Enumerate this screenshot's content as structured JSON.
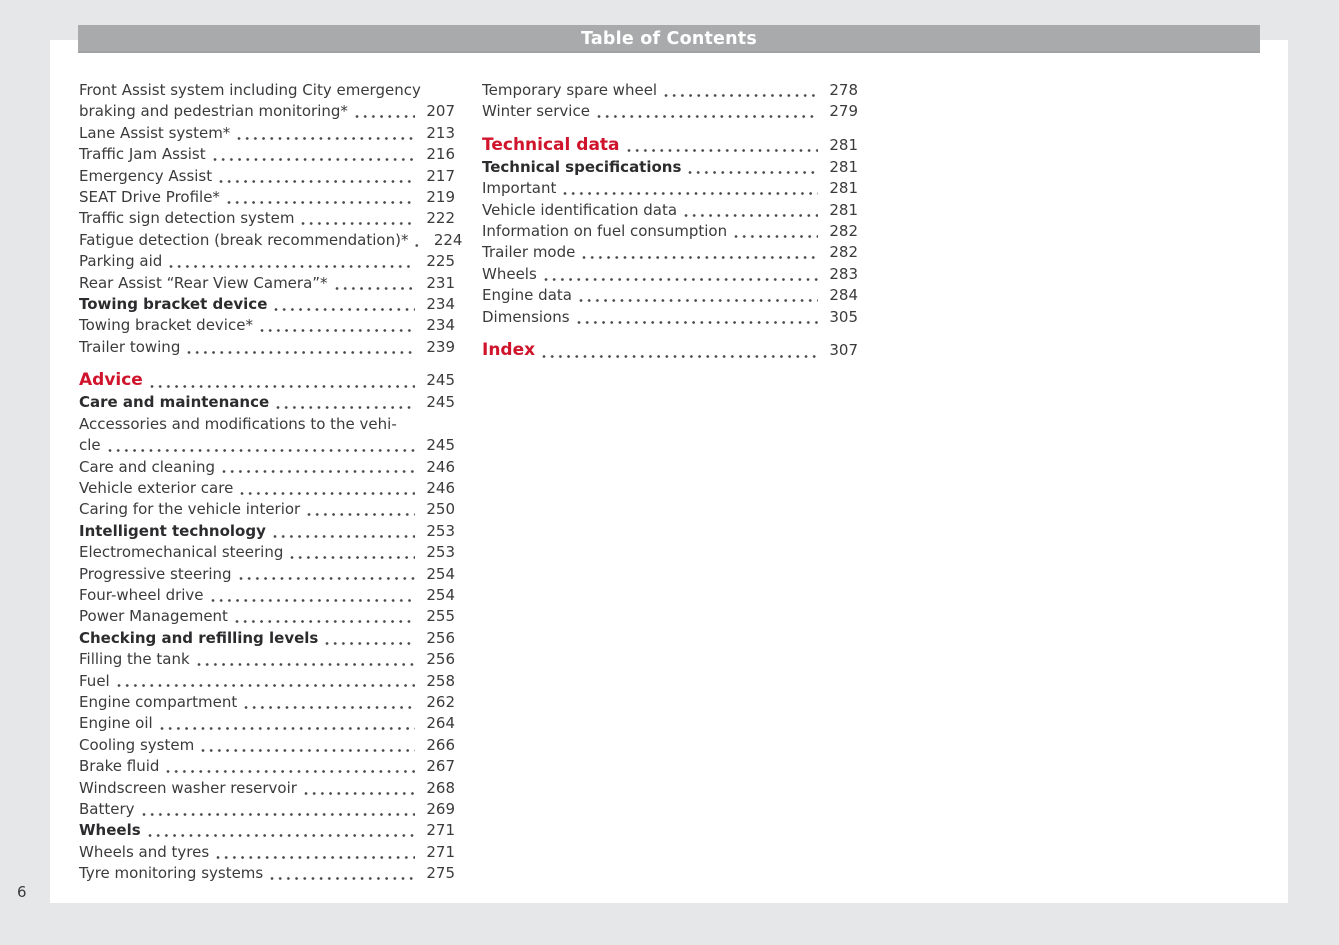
{
  "header": {
    "title": "Table of Contents"
  },
  "page_number": "6",
  "colors": {
    "accent_red": "#cf142b",
    "bar_gray": "#a9aaab",
    "text_gray": "#3b3b3d",
    "canvas_gray": "#e6e7e8",
    "page_white": "#ffffff"
  },
  "toc": {
    "left_column": [
      {
        "pre": "Front Assist system including City emergency",
        "label": "braking and pedestrian monitoring*",
        "page": "207",
        "style": "normal"
      },
      {
        "label": "Lane Assist system*",
        "page": "213",
        "style": "normal"
      },
      {
        "label": "Traffic Jam Assist",
        "page": "216",
        "style": "normal"
      },
      {
        "label": "Emergency Assist",
        "page": "217",
        "style": "normal"
      },
      {
        "label": "SEAT Drive Profile*",
        "page": "219",
        "style": "normal"
      },
      {
        "label": "Traffic sign detection system",
        "page": "222",
        "style": "normal"
      },
      {
        "label": "Fatigue detection (break recommendation)*",
        "page": "224",
        "style": "normal"
      },
      {
        "label": "Parking aid",
        "page": "225",
        "style": "normal"
      },
      {
        "label": "Rear Assist “Rear View Camera”*",
        "page": "231",
        "style": "normal"
      },
      {
        "label": "Towing bracket device",
        "page": "234",
        "style": "bold"
      },
      {
        "label": "Towing bracket device*",
        "page": "234",
        "style": "normal"
      },
      {
        "label": "Trailer towing",
        "page": "239",
        "style": "normal"
      },
      {
        "label": "Advice",
        "page": "245",
        "style": "chapter"
      },
      {
        "label": "Care and maintenance",
        "page": "245",
        "style": "bold"
      },
      {
        "pre": "Accessories and modifications to the vehi-",
        "label": "cle",
        "page": "245",
        "style": "normal"
      },
      {
        "label": "Care and cleaning",
        "page": "246",
        "style": "normal"
      },
      {
        "label": "Vehicle exterior care",
        "page": "246",
        "style": "normal"
      },
      {
        "label": "Caring for the vehicle interior",
        "page": "250",
        "style": "normal"
      },
      {
        "label": "Intelligent technology",
        "page": "253",
        "style": "bold"
      },
      {
        "label": "Electromechanical steering",
        "page": "253",
        "style": "normal"
      },
      {
        "label": "Progressive steering",
        "page": "254",
        "style": "normal"
      },
      {
        "label": "Four-wheel drive",
        "page": "254",
        "style": "normal"
      },
      {
        "label": "Power Management",
        "page": "255",
        "style": "normal"
      },
      {
        "label": "Checking and refilling levels",
        "page": "256",
        "style": "bold"
      },
      {
        "label": "Filling the tank",
        "page": "256",
        "style": "normal"
      },
      {
        "label": "Fuel",
        "page": "258",
        "style": "normal"
      },
      {
        "label": "Engine compartment",
        "page": "262",
        "style": "normal"
      },
      {
        "label": "Engine oil",
        "page": "264",
        "style": "normal"
      },
      {
        "label": "Cooling system",
        "page": "266",
        "style": "normal"
      },
      {
        "label": "Brake fluid",
        "page": "267",
        "style": "normal"
      },
      {
        "label": "Windscreen washer reservoir",
        "page": "268",
        "style": "normal"
      },
      {
        "label": "Battery",
        "page": "269",
        "style": "normal"
      },
      {
        "label": "Wheels",
        "page": "271",
        "style": "bold"
      },
      {
        "label": "Wheels and tyres",
        "page": "271",
        "style": "normal"
      },
      {
        "label": "Tyre monitoring systems",
        "page": "275",
        "style": "normal"
      }
    ],
    "right_column": [
      {
        "label": "Temporary spare wheel",
        "page": "278",
        "style": "normal"
      },
      {
        "label": "Winter service",
        "page": "279",
        "style": "normal"
      },
      {
        "label": "Technical data",
        "page": "281",
        "style": "chapter"
      },
      {
        "label": "Technical specifications",
        "page": "281",
        "style": "bold"
      },
      {
        "label": "Important",
        "page": "281",
        "style": "normal"
      },
      {
        "label": "Vehicle identification data",
        "page": "281",
        "style": "normal"
      },
      {
        "label": "Information on fuel consumption",
        "page": "282",
        "style": "normal"
      },
      {
        "label": "Trailer mode",
        "page": "282",
        "style": "normal"
      },
      {
        "label": "Wheels",
        "page": "283",
        "style": "normal"
      },
      {
        "label": "Engine data",
        "page": "284",
        "style": "normal"
      },
      {
        "label": "Dimensions",
        "page": "305",
        "style": "normal"
      },
      {
        "label": "Index",
        "page": "307",
        "style": "chapter"
      }
    ]
  }
}
